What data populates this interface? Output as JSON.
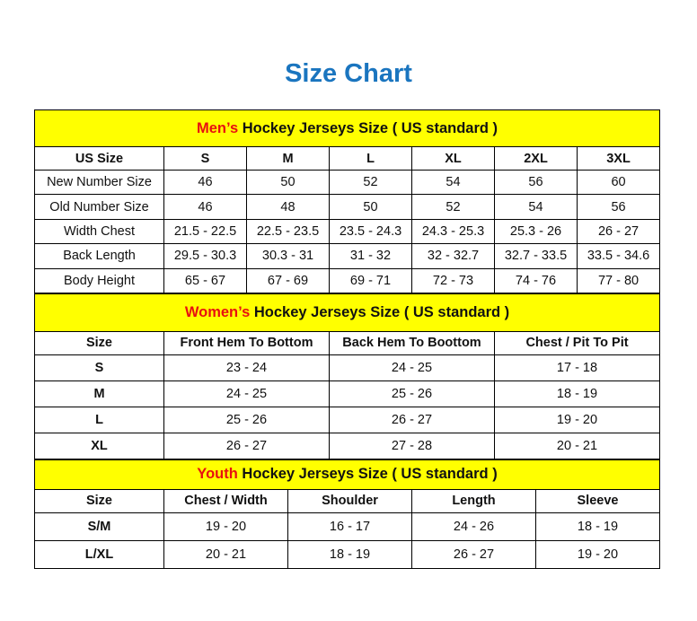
{
  "title": "Size Chart",
  "colors": {
    "title": "#1a75bf",
    "banner": "#ffff00",
    "accent": "#e81010"
  },
  "men": {
    "banner_accent": "Men’s",
    "banner_rest": " Hockey Jerseys Size ( US standard )",
    "headers": [
      "US Size",
      "S",
      "M",
      "L",
      "XL",
      "2XL",
      "3XL"
    ],
    "rows": [
      [
        "New Number Size",
        "46",
        "50",
        "52",
        "54",
        "56",
        "60"
      ],
      [
        "Old Number Size",
        "46",
        "48",
        "50",
        "52",
        "54",
        "56"
      ],
      [
        "Width Chest",
        "21.5 - 22.5",
        "22.5 - 23.5",
        "23.5 - 24.3",
        "24.3 - 25.3",
        "25.3 - 26",
        "26 - 27"
      ],
      [
        "Back Length",
        "29.5 - 30.3",
        "30.3 - 31",
        "31 - 32",
        "32 - 32.7",
        "32.7 - 33.5",
        "33.5 - 34.6"
      ],
      [
        "Body Height",
        "65 - 67",
        "67 - 69",
        "69 - 71",
        "72 - 73",
        "74 - 76",
        "77 - 80"
      ]
    ]
  },
  "women": {
    "banner_accent": "Women’s",
    "banner_rest": " Hockey Jerseys Size ( US standard )",
    "headers": [
      "Size",
      "Front Hem To Bottom",
      "Back Hem To Boottom",
      "Chest / Pit To Pit"
    ],
    "rows": [
      [
        "S",
        "23 - 24",
        "24 - 25",
        "17 - 18"
      ],
      [
        "M",
        "24 - 25",
        "25 - 26",
        "18 - 19"
      ],
      [
        "L",
        "25 - 26",
        "26 - 27",
        "19 - 20"
      ],
      [
        "XL",
        "26 - 27",
        "27 - 28",
        "20 - 21"
      ]
    ]
  },
  "youth": {
    "banner_accent": "Youth",
    "banner_rest": " Hockey Jerseys Size ( US standard )",
    "headers": [
      "Size",
      "Chest / Width",
      "Shoulder",
      "Length",
      "Sleeve"
    ],
    "rows": [
      [
        "S/M",
        "19 - 20",
        "16 - 17",
        "24 - 26",
        "18 - 19"
      ],
      [
        "L/XL",
        "20 - 21",
        "18 - 19",
        "26 - 27",
        "19 - 20"
      ]
    ]
  }
}
